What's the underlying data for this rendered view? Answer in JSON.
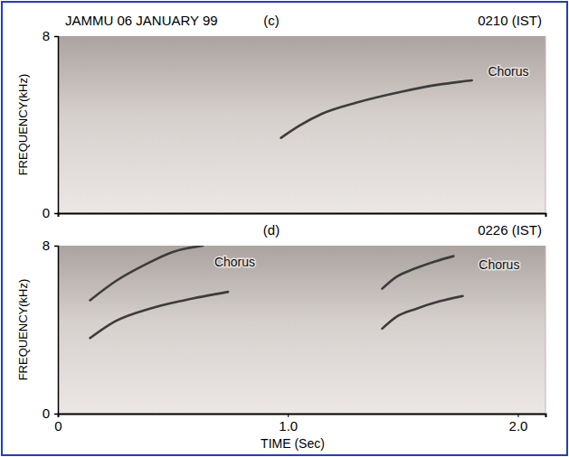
{
  "chart_data": [
    {
      "type": "line",
      "title": "JAMMU 06 JANUARY 99",
      "panel_label": "(c)",
      "subtitle": "0210 (IST)",
      "ylabel": "FREQUENCY(kHz)",
      "xlim": [
        0,
        2.12
      ],
      "ylim": [
        0,
        8
      ],
      "yticks": [
        0,
        8
      ],
      "tick_labels": "y",
      "series": [
        {
          "color": "#3c3c3c",
          "x": [
            0.97,
            1.05,
            1.15,
            1.3,
            1.5,
            1.65,
            1.8
          ],
          "values": [
            3.4,
            3.95,
            4.5,
            5.0,
            5.5,
            5.8,
            6.0
          ]
        }
      ],
      "annotations": [
        {
          "text": "Chorus",
          "x": 1.87,
          "y": 6.2
        }
      ]
    },
    {
      "type": "line",
      "panel_label": "(d)",
      "subtitle": "0226 (IST)",
      "ylabel": "FREQUENCY(kHz)",
      "xlabel": "TIME (Sec)",
      "xlim": [
        0,
        2.12
      ],
      "ylim": [
        0,
        8
      ],
      "yticks": [
        0,
        8
      ],
      "xticks": [
        0,
        {
          "value": 1,
          "label": "1.0"
        },
        {
          "value": 2,
          "label": "2.0"
        }
      ],
      "series": [
        {
          "color": "#3c3c3c",
          "x": [
            0.14,
            0.25,
            0.38,
            0.5,
            0.63
          ],
          "values": [
            5.4,
            6.3,
            7.1,
            7.7,
            8.0
          ]
        },
        {
          "color": "#3c3c3c",
          "x": [
            0.14,
            0.25,
            0.4,
            0.55,
            0.74
          ],
          "values": [
            3.6,
            4.4,
            5.0,
            5.4,
            5.8
          ]
        },
        {
          "color": "#3c3c3c",
          "x": [
            1.41,
            1.47,
            1.55,
            1.64,
            1.72
          ],
          "values": [
            5.95,
            6.5,
            6.9,
            7.25,
            7.5
          ]
        },
        {
          "color": "#3c3c3c",
          "x": [
            1.41,
            1.47,
            1.56,
            1.66,
            1.76
          ],
          "values": [
            4.05,
            4.6,
            5.0,
            5.35,
            5.6
          ]
        }
      ],
      "annotations": [
        {
          "text": "Chorus",
          "x": 0.68,
          "y": 7.0
        },
        {
          "text": "Chorus",
          "x": 1.83,
          "y": 6.9
        }
      ]
    }
  ]
}
